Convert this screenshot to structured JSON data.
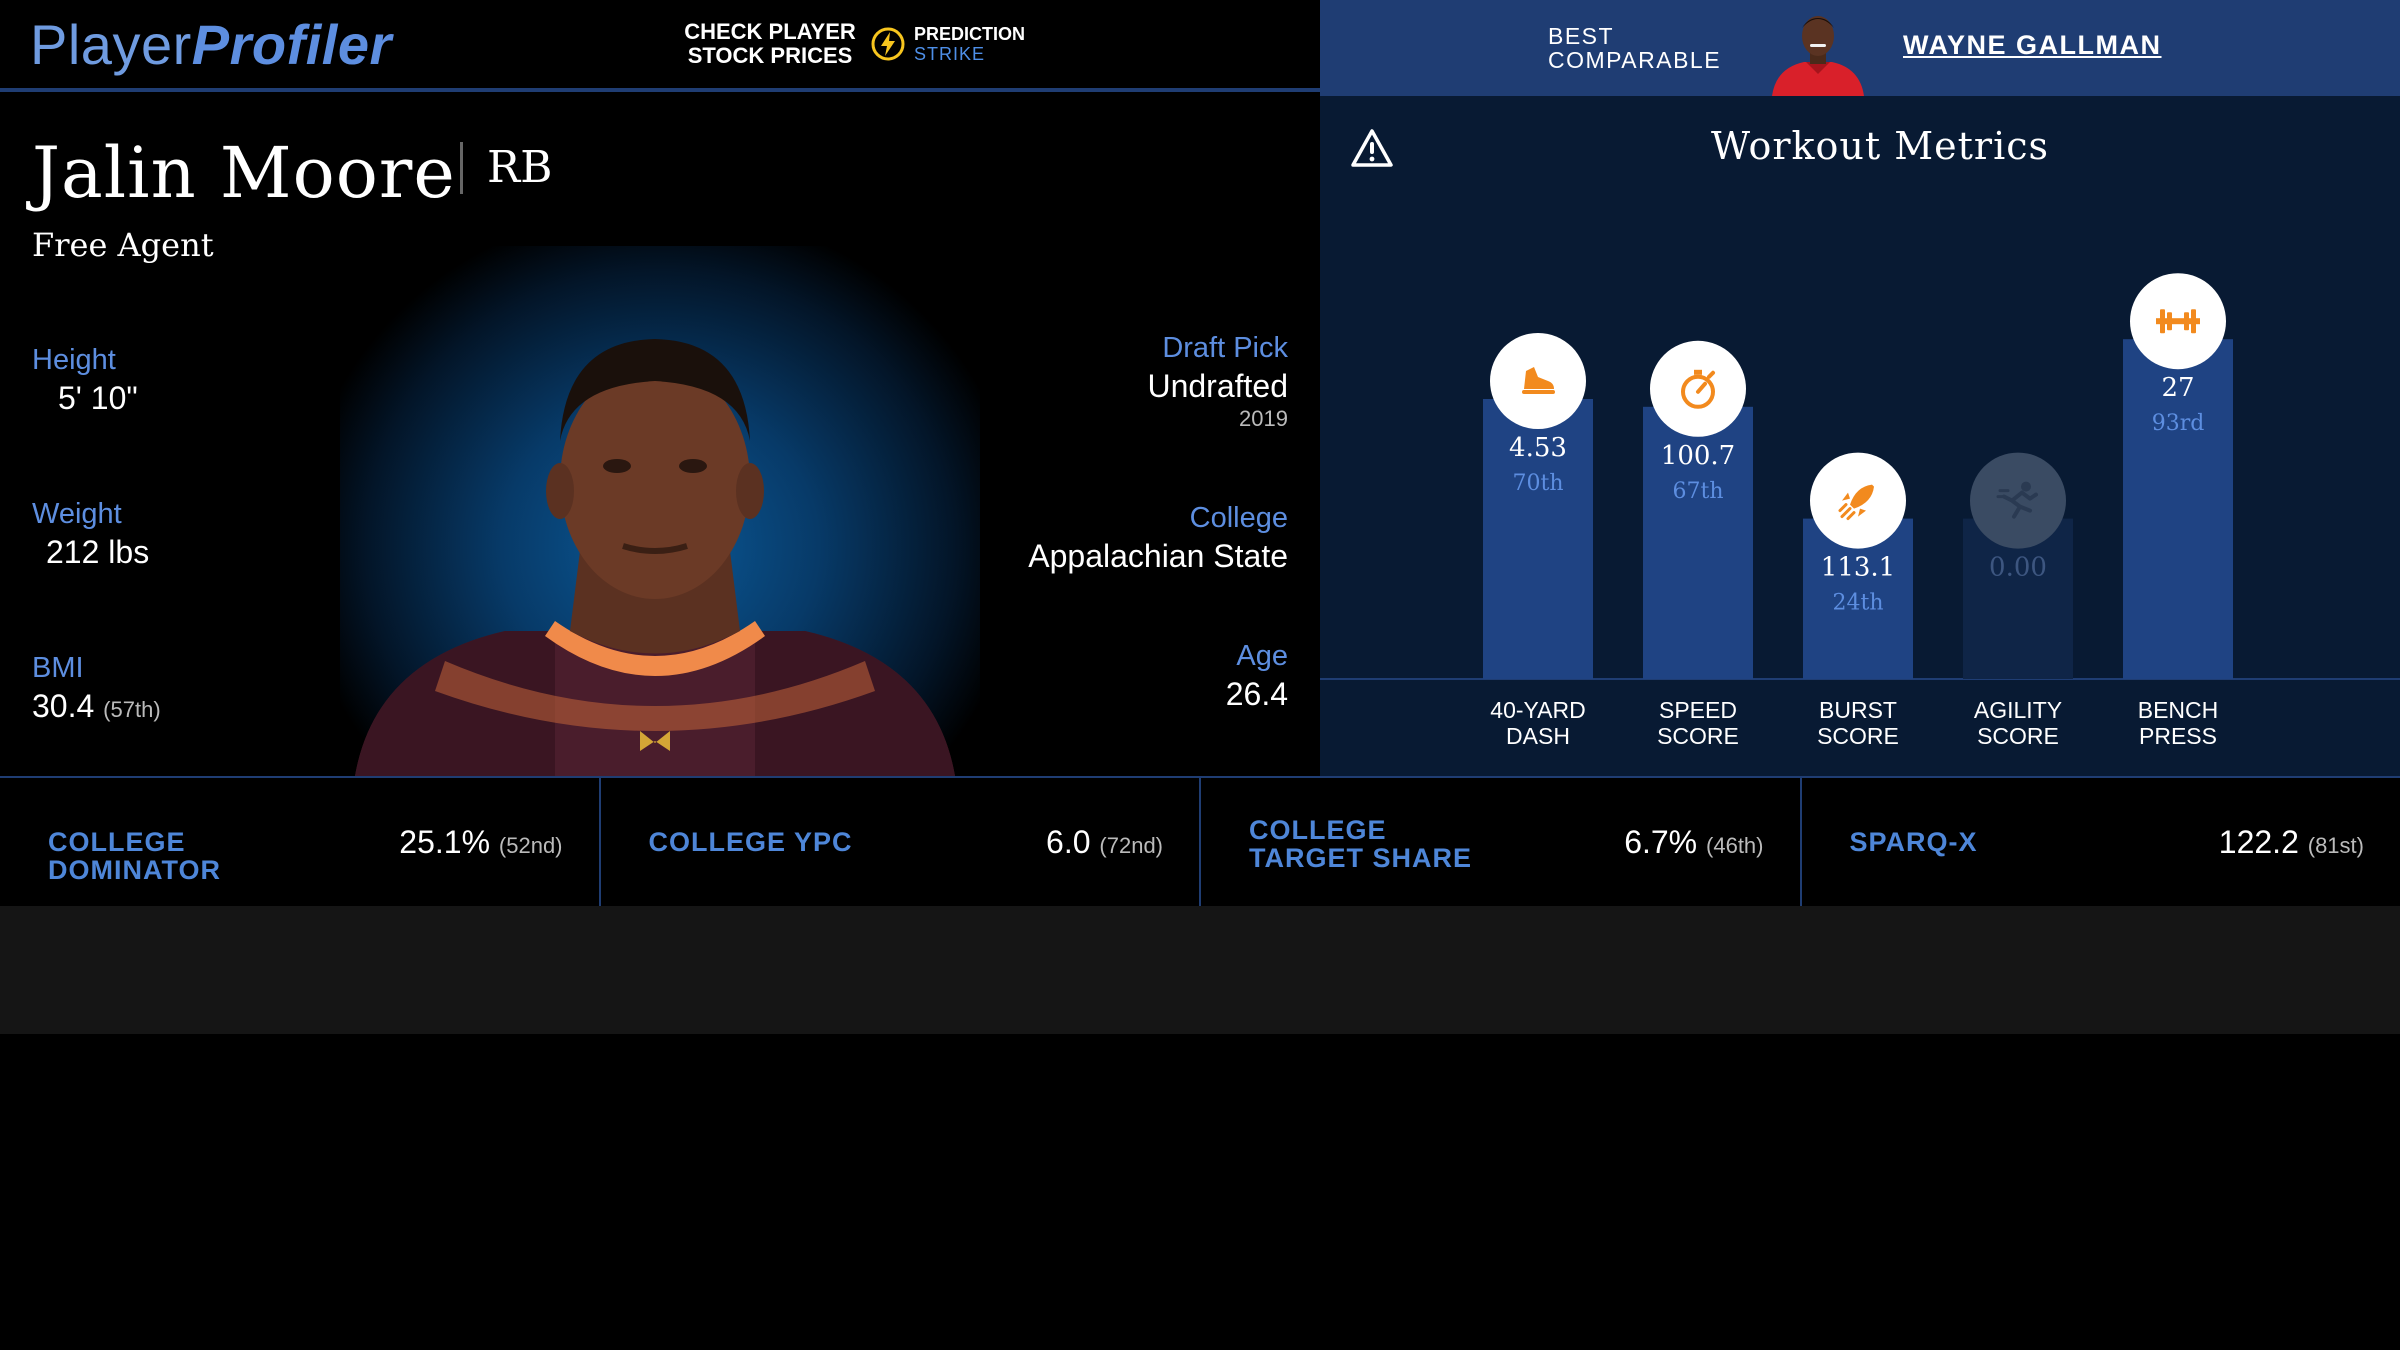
{
  "header": {
    "logo_part1": "Player",
    "logo_part2": "Profiler",
    "promo_line1": "CHECK PLAYER",
    "promo_line2": "STOCK PRICES",
    "promo_brand": "PREDICTION",
    "promo_brand_sub": "STRIKE",
    "best_line1": "BEST",
    "best_line2": "COMPARABLE",
    "comparable_name": "WAYNE GALLMAN"
  },
  "player": {
    "name": "Jalin Moore",
    "position": "RB",
    "team": "Free Agent",
    "height_label": "Height",
    "height": "5' 10\"",
    "weight_label": "Weight",
    "weight": "212 lbs",
    "bmi_label": "BMI",
    "bmi": "30.4",
    "bmi_rank": "(57th)",
    "draft_label": "Draft Pick",
    "draft": "Undrafted",
    "draft_year": "2019",
    "college_label": "College",
    "college": "Appalachian State",
    "age_label": "Age",
    "age": "26.4"
  },
  "workout": {
    "title": "Workout Metrics",
    "colors": {
      "bar": "#1f4383",
      "bar_empty": "#0f2547",
      "icon": "#f28a1e",
      "rank": "#5d8ee0"
    },
    "metrics": [
      {
        "line1": "40-YARD",
        "line2": "DASH",
        "value": "4.53",
        "rank": "70th",
        "percentile": 70,
        "icon": "running-shoe-icon",
        "empty": false
      },
      {
        "line1": "SPEED",
        "line2": "SCORE",
        "value": "100.7",
        "rank": "67th",
        "percentile": 67,
        "icon": "stopwatch-icon",
        "empty": false
      },
      {
        "line1": "BURST",
        "line2": "SCORE",
        "value": "113.1",
        "rank": "24th",
        "percentile": 24,
        "icon": "rocket-icon",
        "empty": false
      },
      {
        "line1": "AGILITY",
        "line2": "SCORE",
        "value": "0.00",
        "rank": "",
        "percentile": 24,
        "icon": "sprinter-icon",
        "empty": true
      },
      {
        "line1": "BENCH",
        "line2": "PRESS",
        "value": "27",
        "rank": "93rd",
        "percentile": 93,
        "icon": "dumbbell-icon",
        "empty": false
      }
    ]
  },
  "strip": [
    {
      "label": "COLLEGE DOMINATOR",
      "value": "25.1%",
      "rank": "(52nd)"
    },
    {
      "label": "COLLEGE YPC",
      "value": "6.0",
      "rank": "(72nd)"
    },
    {
      "label": "COLLEGE TARGET SHARE",
      "value": "6.7%",
      "rank": "(46th)"
    },
    {
      "label": "SPARQ-X",
      "value": "122.2",
      "rank": "(81st)"
    }
  ]
}
